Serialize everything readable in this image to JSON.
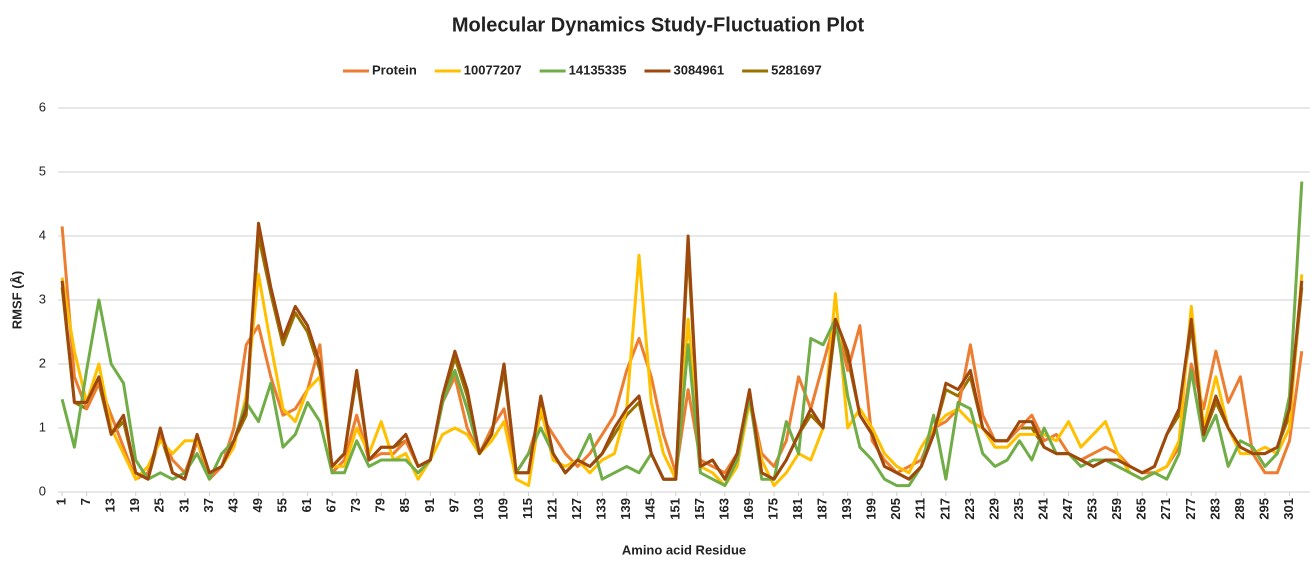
{
  "chart_data": {
    "type": "line",
    "title": "Molecular Dynamics Study-Fluctuation Plot",
    "x_label": "Amino acid Residue",
    "y_label": "RMSF (Å)",
    "x": [
      1,
      4,
      7,
      10,
      13,
      16,
      19,
      22,
      25,
      28,
      31,
      34,
      37,
      40,
      43,
      46,
      49,
      52,
      55,
      58,
      61,
      64,
      67,
      70,
      73,
      76,
      79,
      82,
      85,
      88,
      91,
      94,
      97,
      100,
      103,
      106,
      109,
      112,
      115,
      118,
      121,
      124,
      127,
      130,
      133,
      136,
      139,
      142,
      145,
      148,
      151,
      154,
      157,
      160,
      163,
      166,
      169,
      172,
      175,
      178,
      181,
      184,
      187,
      190,
      193,
      196,
      199,
      202,
      205,
      208,
      211,
      214,
      217,
      220,
      223,
      226,
      229,
      232,
      235,
      238,
      241,
      244,
      247,
      250,
      253,
      256,
      259,
      262,
      265,
      268,
      271,
      274,
      277,
      280,
      283,
      286,
      289,
      292,
      295,
      298,
      301,
      304
    ],
    "xlim": [
      0,
      306
    ],
    "xticks": [
      1,
      7,
      13,
      19,
      25,
      31,
      37,
      43,
      49,
      55,
      61,
      67,
      73,
      79,
      85,
      91,
      97,
      103,
      109,
      115,
      121,
      127,
      133,
      139,
      145,
      151,
      157,
      163,
      169,
      175,
      181,
      187,
      193,
      199,
      205,
      211,
      217,
      223,
      229,
      235,
      241,
      247,
      253,
      259,
      265,
      271,
      277,
      283,
      289,
      295,
      301
    ],
    "ylim": [
      0,
      6
    ],
    "yticks": [
      0,
      1,
      2,
      3,
      4,
      5,
      6
    ],
    "grid": true,
    "legend": "top",
    "series": [
      {
        "name": "Protein",
        "color": "#ED7D31",
        "values": [
          4.15,
          1.8,
          1.3,
          1.7,
          1.2,
          0.7,
          0.2,
          0.3,
          0.9,
          0.5,
          0.3,
          0.8,
          0.2,
          0.4,
          1.0,
          2.3,
          2.6,
          1.8,
          1.2,
          1.3,
          1.6,
          2.3,
          0.3,
          0.5,
          1.2,
          0.5,
          0.6,
          0.6,
          0.8,
          0.4,
          0.5,
          1.4,
          1.8,
          1.0,
          0.6,
          1.0,
          1.3,
          0.3,
          0.6,
          1.2,
          0.9,
          0.6,
          0.4,
          0.6,
          0.9,
          1.2,
          1.9,
          2.4,
          1.8,
          0.9,
          0.3,
          1.6,
          0.5,
          0.4,
          0.3,
          0.6,
          1.5,
          0.6,
          0.4,
          0.8,
          1.8,
          1.3,
          2.0,
          2.7,
          1.9,
          2.6,
          0.8,
          0.5,
          0.3,
          0.4,
          0.5,
          1.0,
          1.1,
          1.3,
          2.3,
          1.2,
          0.8,
          0.8,
          1.0,
          1.2,
          0.8,
          0.9,
          0.6,
          0.5,
          0.6,
          0.7,
          0.6,
          0.4,
          0.3,
          0.3,
          0.4,
          0.7,
          2.0,
          1.3,
          2.2,
          1.4,
          1.8,
          0.6,
          0.3,
          0.3,
          0.8,
          2.2
        ]
      },
      {
        "name": "10077207",
        "color": "#FFC000",
        "values": [
          3.35,
          2.2,
          1.4,
          2.0,
          1.0,
          0.6,
          0.2,
          0.4,
          0.8,
          0.6,
          0.8,
          0.8,
          0.3,
          0.4,
          0.7,
          1.5,
          3.4,
          2.3,
          1.3,
          1.1,
          1.6,
          1.8,
          0.4,
          0.4,
          1.0,
          0.6,
          1.1,
          0.5,
          0.6,
          0.2,
          0.5,
          0.9,
          1.0,
          0.9,
          0.6,
          0.8,
          1.1,
          0.2,
          0.1,
          1.3,
          0.5,
          0.4,
          0.5,
          0.3,
          0.5,
          0.6,
          1.3,
          3.7,
          1.4,
          0.6,
          0.2,
          2.7,
          0.4,
          0.3,
          0.1,
          0.4,
          1.4,
          0.5,
          0.1,
          0.3,
          0.6,
          0.5,
          1.0,
          3.1,
          1.0,
          1.3,
          1.0,
          0.6,
          0.4,
          0.3,
          0.7,
          1.0,
          1.2,
          1.3,
          1.1,
          1.0,
          0.7,
          0.7,
          0.9,
          0.9,
          0.9,
          0.8,
          1.1,
          0.7,
          0.9,
          1.1,
          0.6,
          0.3,
          0.2,
          0.3,
          0.4,
          0.8,
          2.9,
          1.0,
          1.8,
          1.0,
          0.6,
          0.6,
          0.7,
          0.6,
          1.0,
          3.4
        ]
      },
      {
        "name": "14135335",
        "color": "#70AD47",
        "values": [
          1.45,
          0.7,
          1.9,
          3.0,
          2.0,
          1.7,
          0.5,
          0.2,
          0.3,
          0.2,
          0.3,
          0.6,
          0.2,
          0.6,
          0.8,
          1.4,
          1.1,
          1.7,
          0.7,
          0.9,
          1.4,
          1.1,
          0.3,
          0.3,
          0.8,
          0.4,
          0.5,
          0.5,
          0.5,
          0.3,
          0.5,
          1.4,
          1.9,
          1.3,
          0.6,
          0.9,
          2.0,
          0.3,
          0.6,
          1.0,
          0.6,
          0.3,
          0.5,
          0.9,
          0.2,
          0.3,
          0.4,
          0.3,
          0.6,
          0.2,
          0.2,
          2.3,
          0.3,
          0.2,
          0.1,
          0.5,
          1.5,
          0.2,
          0.2,
          1.1,
          0.6,
          2.4,
          2.3,
          2.7,
          1.5,
          0.7,
          0.5,
          0.2,
          0.1,
          0.1,
          0.4,
          1.2,
          0.2,
          1.4,
          1.3,
          0.6,
          0.4,
          0.5,
          0.8,
          0.5,
          1.0,
          0.6,
          0.6,
          0.4,
          0.5,
          0.5,
          0.4,
          0.3,
          0.2,
          0.3,
          0.2,
          0.6,
          1.9,
          0.8,
          1.2,
          0.4,
          0.8,
          0.7,
          0.4,
          0.6,
          1.5,
          4.85
        ]
      },
      {
        "name": "3084961",
        "color": "#9E480E",
        "values": [
          3.3,
          1.4,
          1.4,
          1.8,
          0.9,
          1.2,
          0.3,
          0.2,
          1.0,
          0.3,
          0.2,
          0.9,
          0.3,
          0.4,
          0.8,
          1.3,
          4.2,
          3.2,
          2.4,
          2.9,
          2.6,
          2.0,
          0.4,
          0.6,
          1.9,
          0.5,
          0.7,
          0.7,
          0.9,
          0.4,
          0.5,
          1.5,
          2.2,
          1.6,
          0.6,
          0.9,
          2.0,
          0.3,
          0.3,
          1.5,
          0.6,
          0.3,
          0.5,
          0.4,
          0.6,
          1.0,
          1.3,
          1.5,
          0.6,
          0.2,
          0.2,
          4.0,
          0.4,
          0.5,
          0.2,
          0.6,
          1.6,
          0.3,
          0.2,
          0.5,
          0.9,
          1.3,
          1.0,
          2.7,
          2.2,
          1.2,
          0.9,
          0.4,
          0.3,
          0.2,
          0.4,
          0.9,
          1.7,
          1.6,
          1.9,
          1.0,
          0.8,
          0.8,
          1.1,
          1.1,
          0.7,
          0.6,
          0.6,
          0.5,
          0.4,
          0.5,
          0.5,
          0.4,
          0.3,
          0.4,
          0.9,
          1.3,
          2.7,
          0.9,
          1.5,
          1.0,
          0.7,
          0.6,
          0.6,
          0.7,
          1.3,
          3.3
        ]
      },
      {
        "name": "5281697",
        "color": "#997300",
        "values": [
          3.2,
          1.4,
          1.3,
          1.7,
          0.9,
          1.1,
          0.3,
          0.2,
          0.9,
          0.3,
          0.2,
          0.8,
          0.3,
          0.4,
          0.8,
          1.2,
          4.0,
          3.1,
          2.3,
          2.8,
          2.5,
          1.9,
          0.4,
          0.6,
          1.8,
          0.5,
          0.7,
          0.7,
          0.8,
          0.4,
          0.5,
          1.4,
          2.1,
          1.5,
          0.6,
          0.9,
          1.9,
          0.3,
          0.3,
          1.4,
          0.6,
          0.3,
          0.5,
          0.4,
          0.6,
          0.9,
          1.2,
          1.4,
          0.6,
          0.2,
          0.2,
          3.8,
          0.4,
          0.5,
          0.2,
          0.6,
          1.5,
          0.3,
          0.2,
          0.5,
          0.9,
          1.2,
          1.0,
          2.6,
          2.1,
          1.2,
          0.9,
          0.4,
          0.3,
          0.2,
          0.4,
          0.9,
          1.6,
          1.5,
          1.8,
          1.0,
          0.8,
          0.8,
          1.0,
          1.0,
          0.7,
          0.6,
          0.6,
          0.5,
          0.4,
          0.5,
          0.5,
          0.4,
          0.3,
          0.4,
          0.9,
          1.2,
          2.6,
          0.9,
          1.4,
          1.0,
          0.7,
          0.6,
          0.6,
          0.7,
          1.2,
          3.2
        ]
      }
    ]
  }
}
